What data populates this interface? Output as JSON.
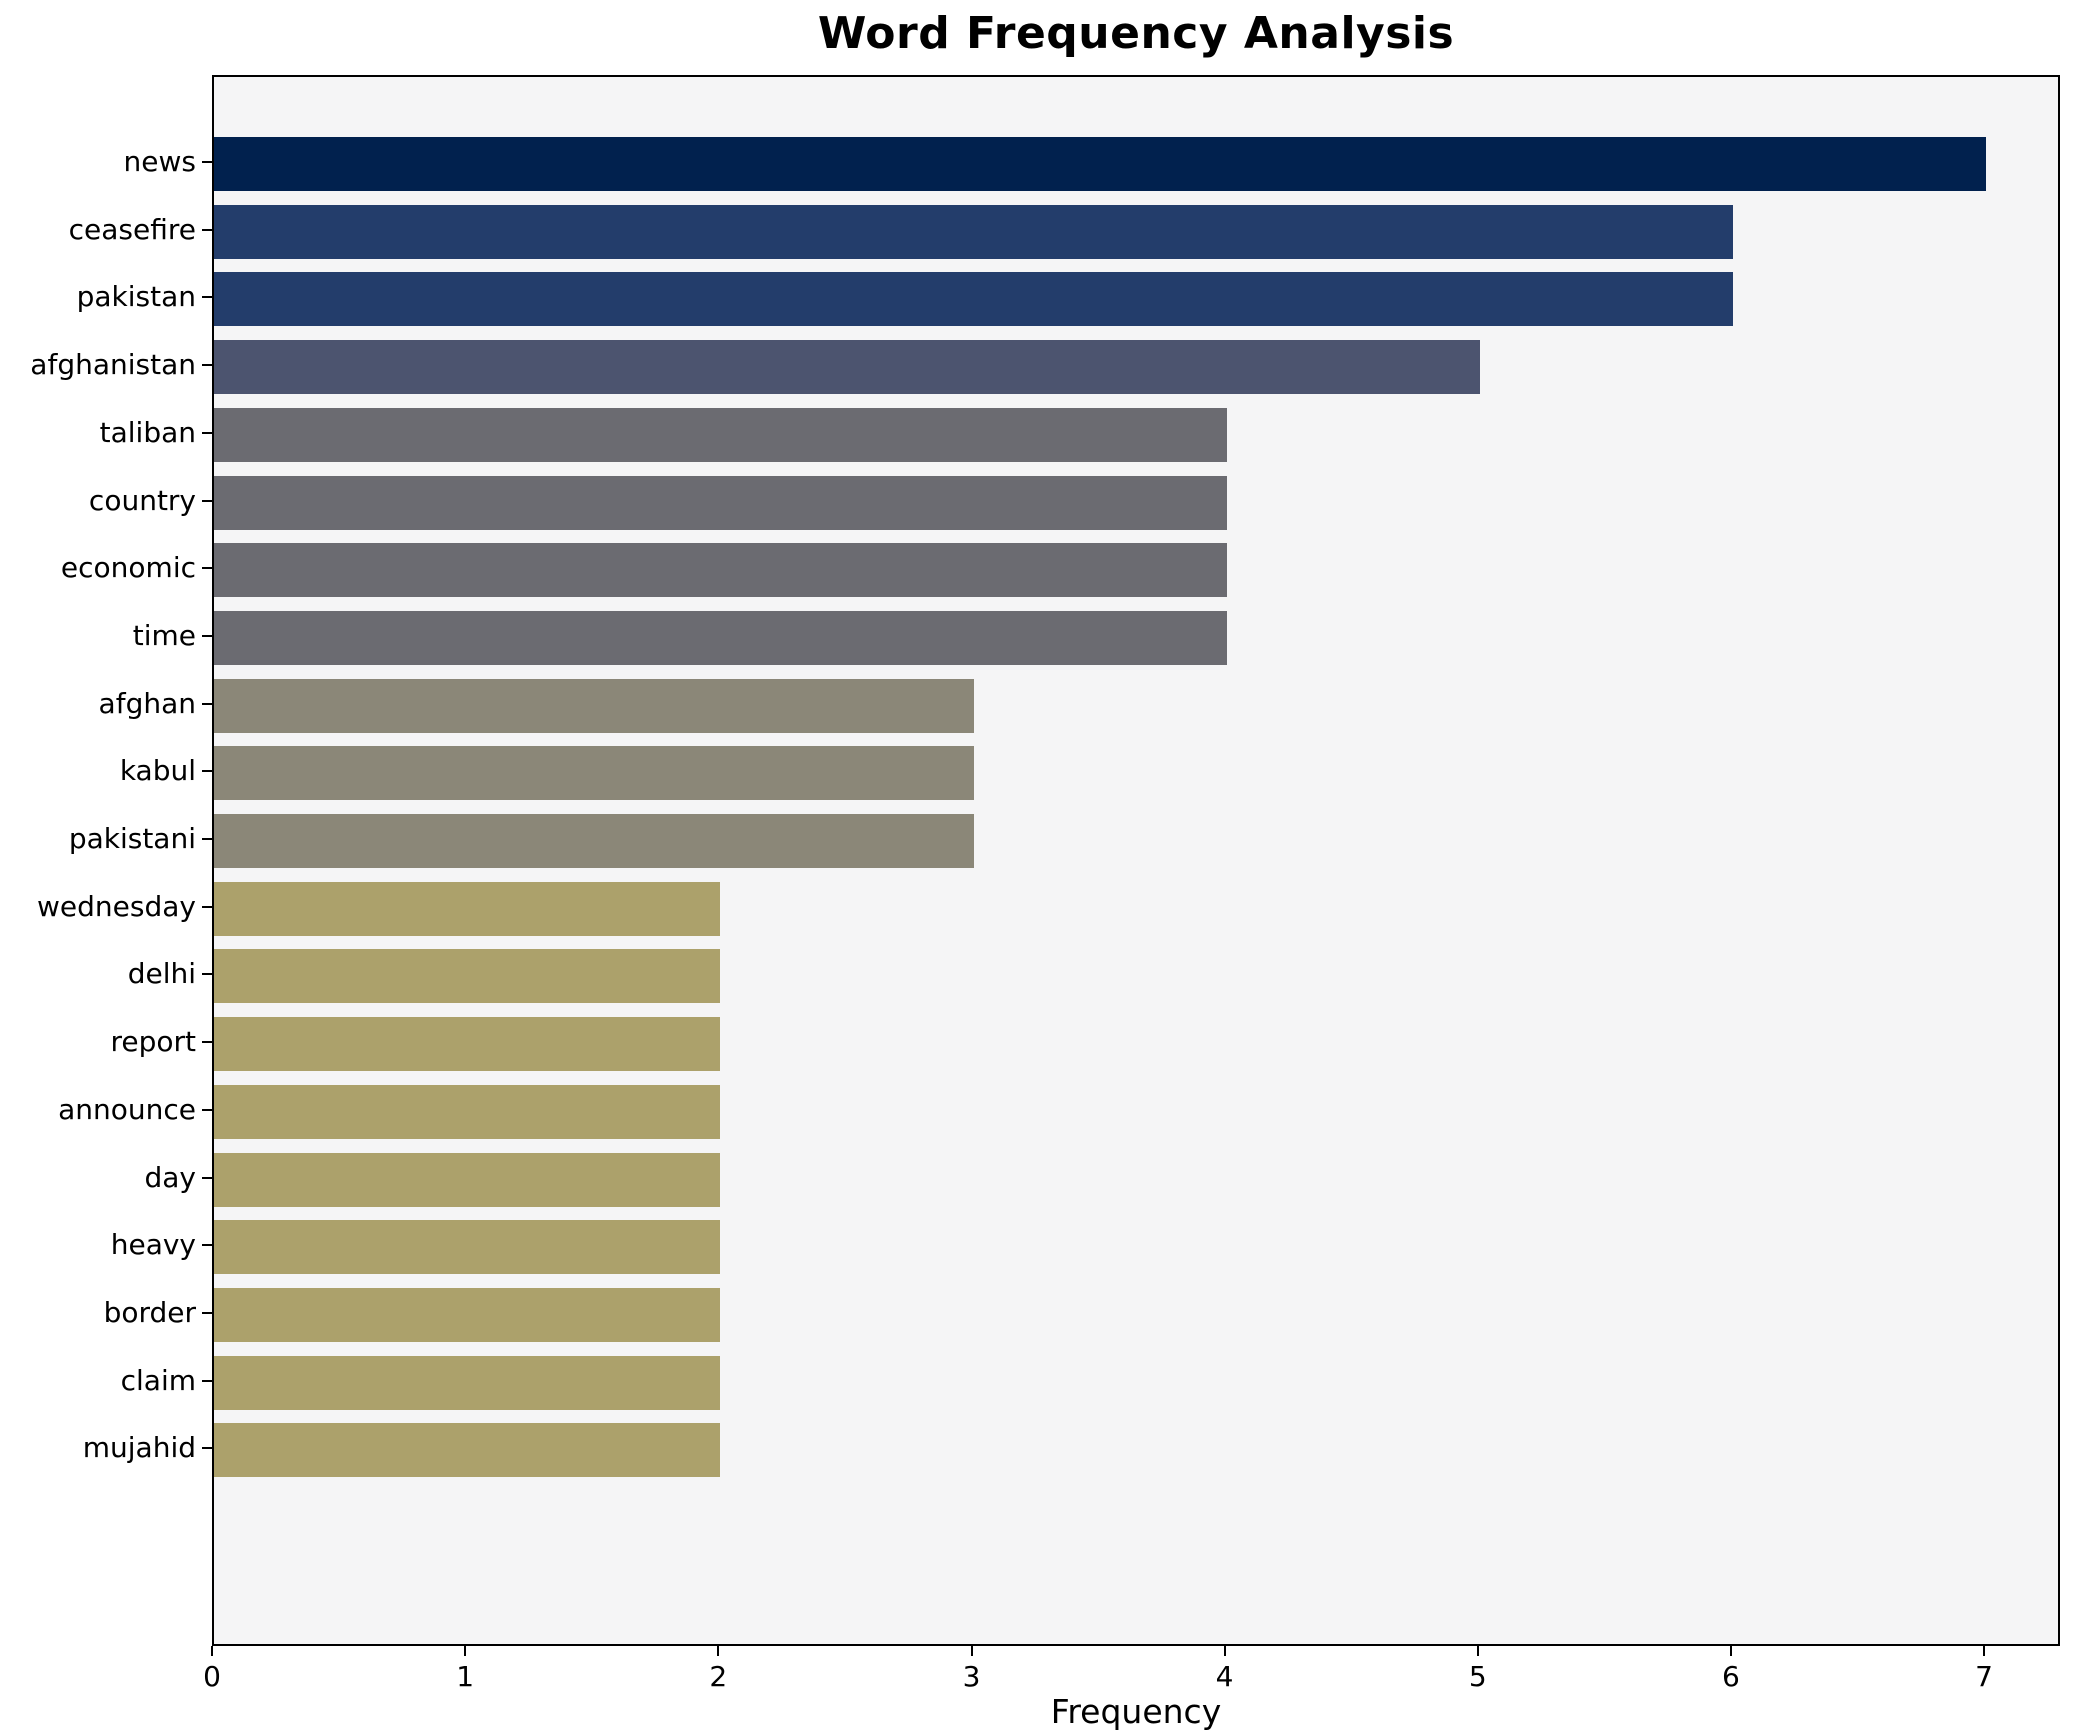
{
  "title": "Word Frequency Analysis",
  "chart_data": {
    "type": "bar",
    "orientation": "horizontal",
    "title": "Word Frequency Analysis",
    "xlabel": "Frequency",
    "ylabel": "",
    "categories": [
      "news",
      "ceasefire",
      "pakistan",
      "afghanistan",
      "taliban",
      "country",
      "economic",
      "time",
      "afghan",
      "kabul",
      "pakistani",
      "wednesday",
      "delhi",
      "report",
      "announce",
      "day",
      "heavy",
      "border",
      "claim",
      "mujahid"
    ],
    "values": [
      7,
      6,
      6,
      5,
      4,
      4,
      4,
      4,
      3,
      3,
      3,
      2,
      2,
      2,
      2,
      2,
      2,
      2,
      2,
      2
    ],
    "xlim": [
      0,
      7.3
    ],
    "xticks": [
      0,
      1,
      2,
      3,
      4,
      5,
      6,
      7
    ],
    "grid": false,
    "legend": null,
    "colors_by_value": {
      "7": "#01214e",
      "6": "#233d6b",
      "5": "#4c546f",
      "4": "#6b6b71",
      "3": "#8b8778",
      "2": "#aca16b"
    },
    "plot_background": "#f5f5f6",
    "figure_background": "#ffffff",
    "spine_color": "#000000",
    "text_color": "#000000"
  }
}
